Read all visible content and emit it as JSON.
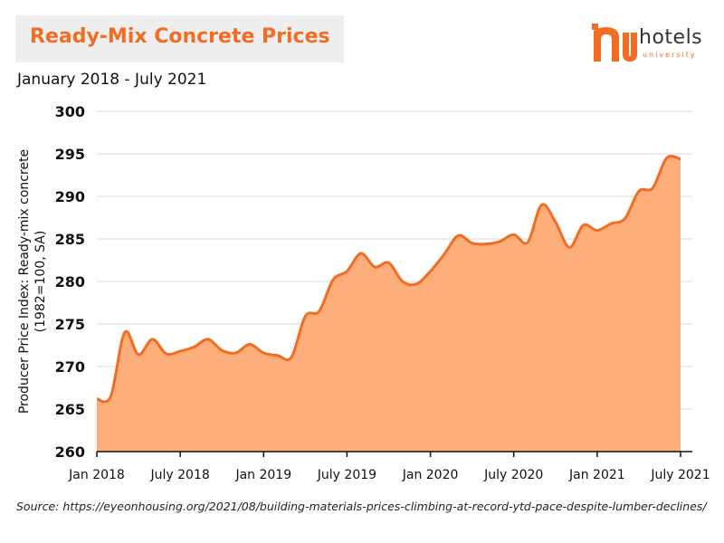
{
  "header": {
    "title": "Ready-Mix Concrete Prices",
    "subtitle": "January 2018 - July 2021"
  },
  "logo": {
    "word": "hotels",
    "sub": "university",
    "accent_color": "#f26d21"
  },
  "source": "Source: https://eyeonhousing.org/2021/08/building-materials-prices-climbing-at-record-ytd-pace-despite-lumber-declines/",
  "colors": {
    "title": "#f26d21",
    "line": "#f26d21",
    "fill": "#fdae7b",
    "grid": "#d9d9d9"
  },
  "chart_data": {
    "type": "area",
    "title": "Ready-Mix Concrete Prices",
    "subtitle": "January 2018 - July 2021",
    "xlabel": "",
    "ylabel": "Producer Price Index: Ready-mix concrete (1982=100, SA)",
    "ylim": [
      260,
      300
    ],
    "yticks": [
      260,
      265,
      270,
      275,
      280,
      285,
      290,
      295,
      300
    ],
    "xtick_labels": [
      "Jan 2018",
      "July 2018",
      "Jan 2019",
      "July 2019",
      "Jan 2020",
      "July 2020",
      "Jan 2021",
      "July 2021"
    ],
    "grid": true,
    "series": [
      {
        "x": [
          "2018-01",
          "2018-02",
          "2018-03",
          "2018-04",
          "2018-05",
          "2018-06",
          "2018-07",
          "2018-08",
          "2018-09",
          "2018-10",
          "2018-11",
          "2018-12",
          "2019-01",
          "2019-02",
          "2019-03",
          "2019-04",
          "2019-05",
          "2019-06",
          "2019-07",
          "2019-08",
          "2019-09",
          "2019-10",
          "2019-11",
          "2019-12",
          "2020-01",
          "2020-02",
          "2020-03",
          "2020-04",
          "2020-05",
          "2020-06",
          "2020-07",
          "2020-08",
          "2020-09",
          "2020-10",
          "2020-11",
          "2020-12",
          "2021-01",
          "2021-02",
          "2021-03",
          "2021-04",
          "2021-05",
          "2021-06",
          "2021-07"
        ],
        "values": [
          266.2,
          266.5,
          274.0,
          271.4,
          273.2,
          271.5,
          271.8,
          272.3,
          273.2,
          271.9,
          271.6,
          272.6,
          271.6,
          271.3,
          271.1,
          275.9,
          276.5,
          280.2,
          281.2,
          283.3,
          281.7,
          282.2,
          280.0,
          279.7,
          281.2,
          283.2,
          285.4,
          284.5,
          284.4,
          284.7,
          285.5,
          284.6,
          289.0,
          287.0,
          284.0,
          286.6,
          286.0,
          286.8,
          287.4,
          290.6,
          291.0,
          294.5,
          294.4
        ]
      }
    ]
  }
}
